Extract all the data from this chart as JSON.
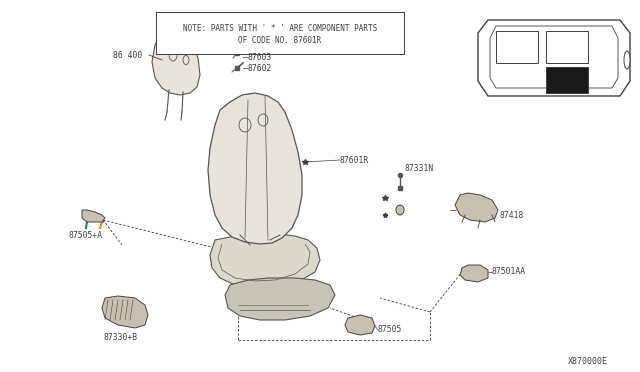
{
  "bg_color": "#ffffff",
  "line_color": "#404040",
  "note_text1": "NOTE: PARTS WITH ' * ' ARE COMPONENT PARTS",
  "note_text2": "OF CODE NO. 87601R",
  "diagram_id": "X870000E",
  "font_size": 5.5,
  "label_font_size": 5.8,
  "seat_color": "#e8e4dc",
  "seat_edge": "#555555",
  "part_color": "#c8c0b0",
  "part_edge": "#444444"
}
